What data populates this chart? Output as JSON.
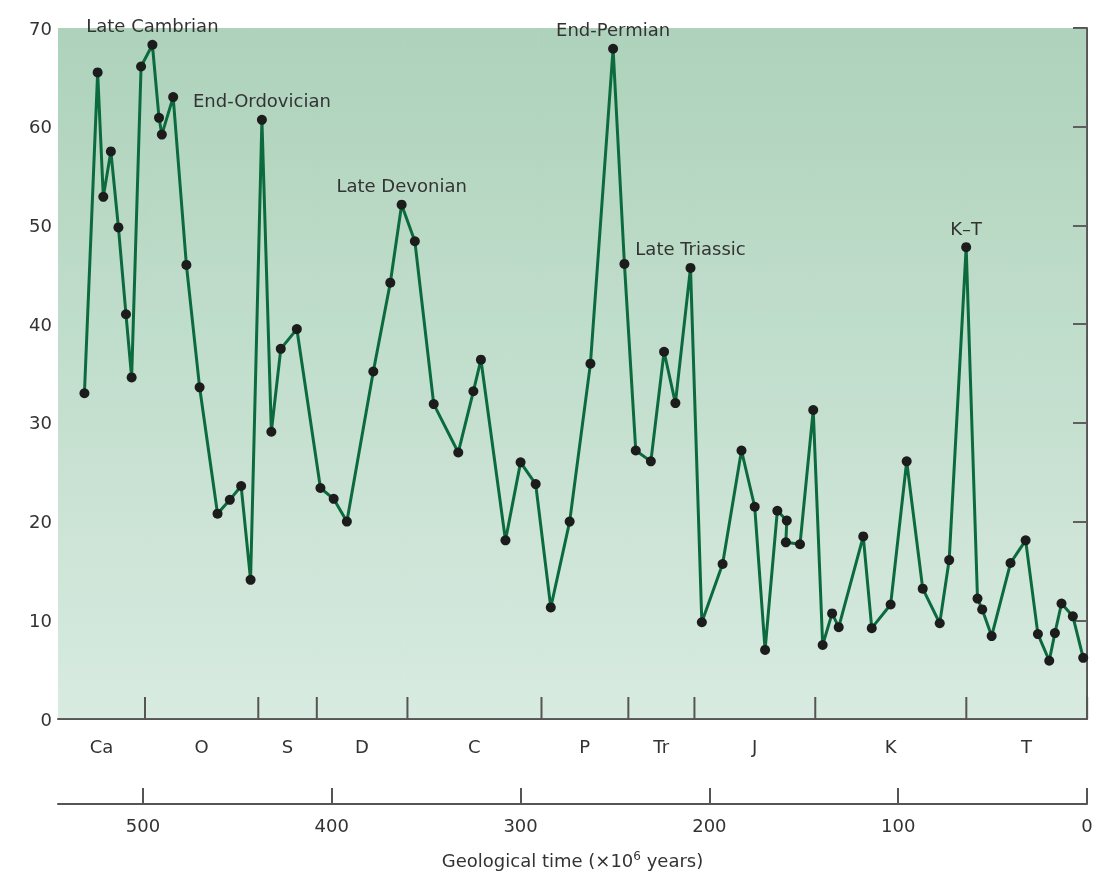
{
  "chart_data": {
    "type": "line",
    "xlabel": "Geological time (×10$^{6}$ years)",
    "xlim": [
      545,
      0
    ],
    "xticks": [
      500,
      400,
      300,
      200,
      100,
      0
    ],
    "bands": [
      {
        "axis": "x",
        "from": 545,
        "to": 499,
        "label": "Ca"
      },
      {
        "axis": "x",
        "from": 499,
        "to": 439,
        "label": "O"
      },
      {
        "axis": "x",
        "from": 439,
        "to": 408,
        "label": "S"
      },
      {
        "axis": "x",
        "from": 408,
        "to": 360,
        "label": "D"
      },
      {
        "axis": "x",
        "from": 360,
        "to": 289,
        "label": "C"
      },
      {
        "axis": "x",
        "from": 289,
        "to": 243,
        "label": "P"
      },
      {
        "axis": "x",
        "from": 243,
        "to": 208,
        "label": "Tr"
      },
      {
        "axis": "x",
        "from": 208,
        "to": 144,
        "label": "J"
      },
      {
        "axis": "x",
        "from": 144,
        "to": 64,
        "label": "K"
      },
      {
        "axis": "x",
        "from": 64,
        "to": 0,
        "label": "T"
      }
    ],
    "ylim": [
      0,
      70
    ],
    "yticks": [
      0,
      10,
      20,
      30,
      40,
      50,
      60,
      70
    ],
    "marker": "circle",
    "line_style": "solid",
    "x": [
      531,
      524,
      521,
      517,
      513,
      509,
      506,
      501,
      495,
      491.5,
      490,
      484,
      477,
      470,
      460.5,
      454,
      448,
      443,
      437,
      432,
      427,
      418.5,
      406,
      399,
      392,
      378,
      369,
      363,
      356,
      346,
      333,
      325,
      321,
      308,
      300,
      292,
      284,
      274,
      263,
      251,
      245,
      239,
      231,
      224,
      218,
      210,
      204,
      193,
      183,
      176,
      170.5,
      164,
      159,
      159.5,
      152,
      145,
      140,
      135,
      131.5,
      118.5,
      114,
      104,
      95.5,
      87,
      78,
      73,
      64,
      58,
      55.5,
      50.5,
      40.5,
      32.5,
      26,
      20,
      17,
      13.5,
      7.5,
      2
    ],
    "series": [
      {
        "color": "#0b6b3e",
        "values": [
          33.0,
          65.5,
          52.9,
          57.5,
          49.8,
          41.0,
          34.6,
          66.1,
          68.3,
          60.9,
          59.2,
          63.0,
          46.0,
          33.6,
          20.8,
          22.2,
          23.6,
          14.1,
          60.7,
          29.1,
          37.5,
          39.5,
          23.4,
          22.3,
          20.0,
          35.2,
          44.2,
          52.1,
          48.4,
          31.9,
          27.0,
          33.2,
          36.4,
          18.1,
          26.0,
          23.8,
          11.3,
          20.0,
          36.0,
          67.9,
          46.1,
          27.2,
          26.1,
          37.2,
          32.0,
          45.7,
          9.8,
          15.7,
          27.2,
          21.5,
          7.0,
          21.1,
          20.1,
          17.9,
          17.7,
          31.3,
          7.5,
          10.7,
          9.3,
          18.5,
          9.2,
          11.6,
          26.1,
          13.2,
          9.7,
          16.1,
          47.8,
          12.2,
          11.1,
          8.4,
          15.8,
          18.1,
          8.6,
          5.9,
          8.7,
          11.7,
          10.4,
          6.2
        ]
      }
    ],
    "annotations": [
      {
        "text": "Late Cambrian",
        "x": 495,
        "y": 68.3
      },
      {
        "text": "End-Ordovician",
        "x": 437,
        "y": 60.7
      },
      {
        "text": "Late Devonian",
        "x": 363,
        "y": 52.1
      },
      {
        "text": "End-Permian",
        "x": 251,
        "y": 67.9
      },
      {
        "text": "Late Triassic",
        "x": 210,
        "y": 45.7
      },
      {
        "text": "K–T",
        "x": 64,
        "y": 47.8
      }
    ]
  }
}
